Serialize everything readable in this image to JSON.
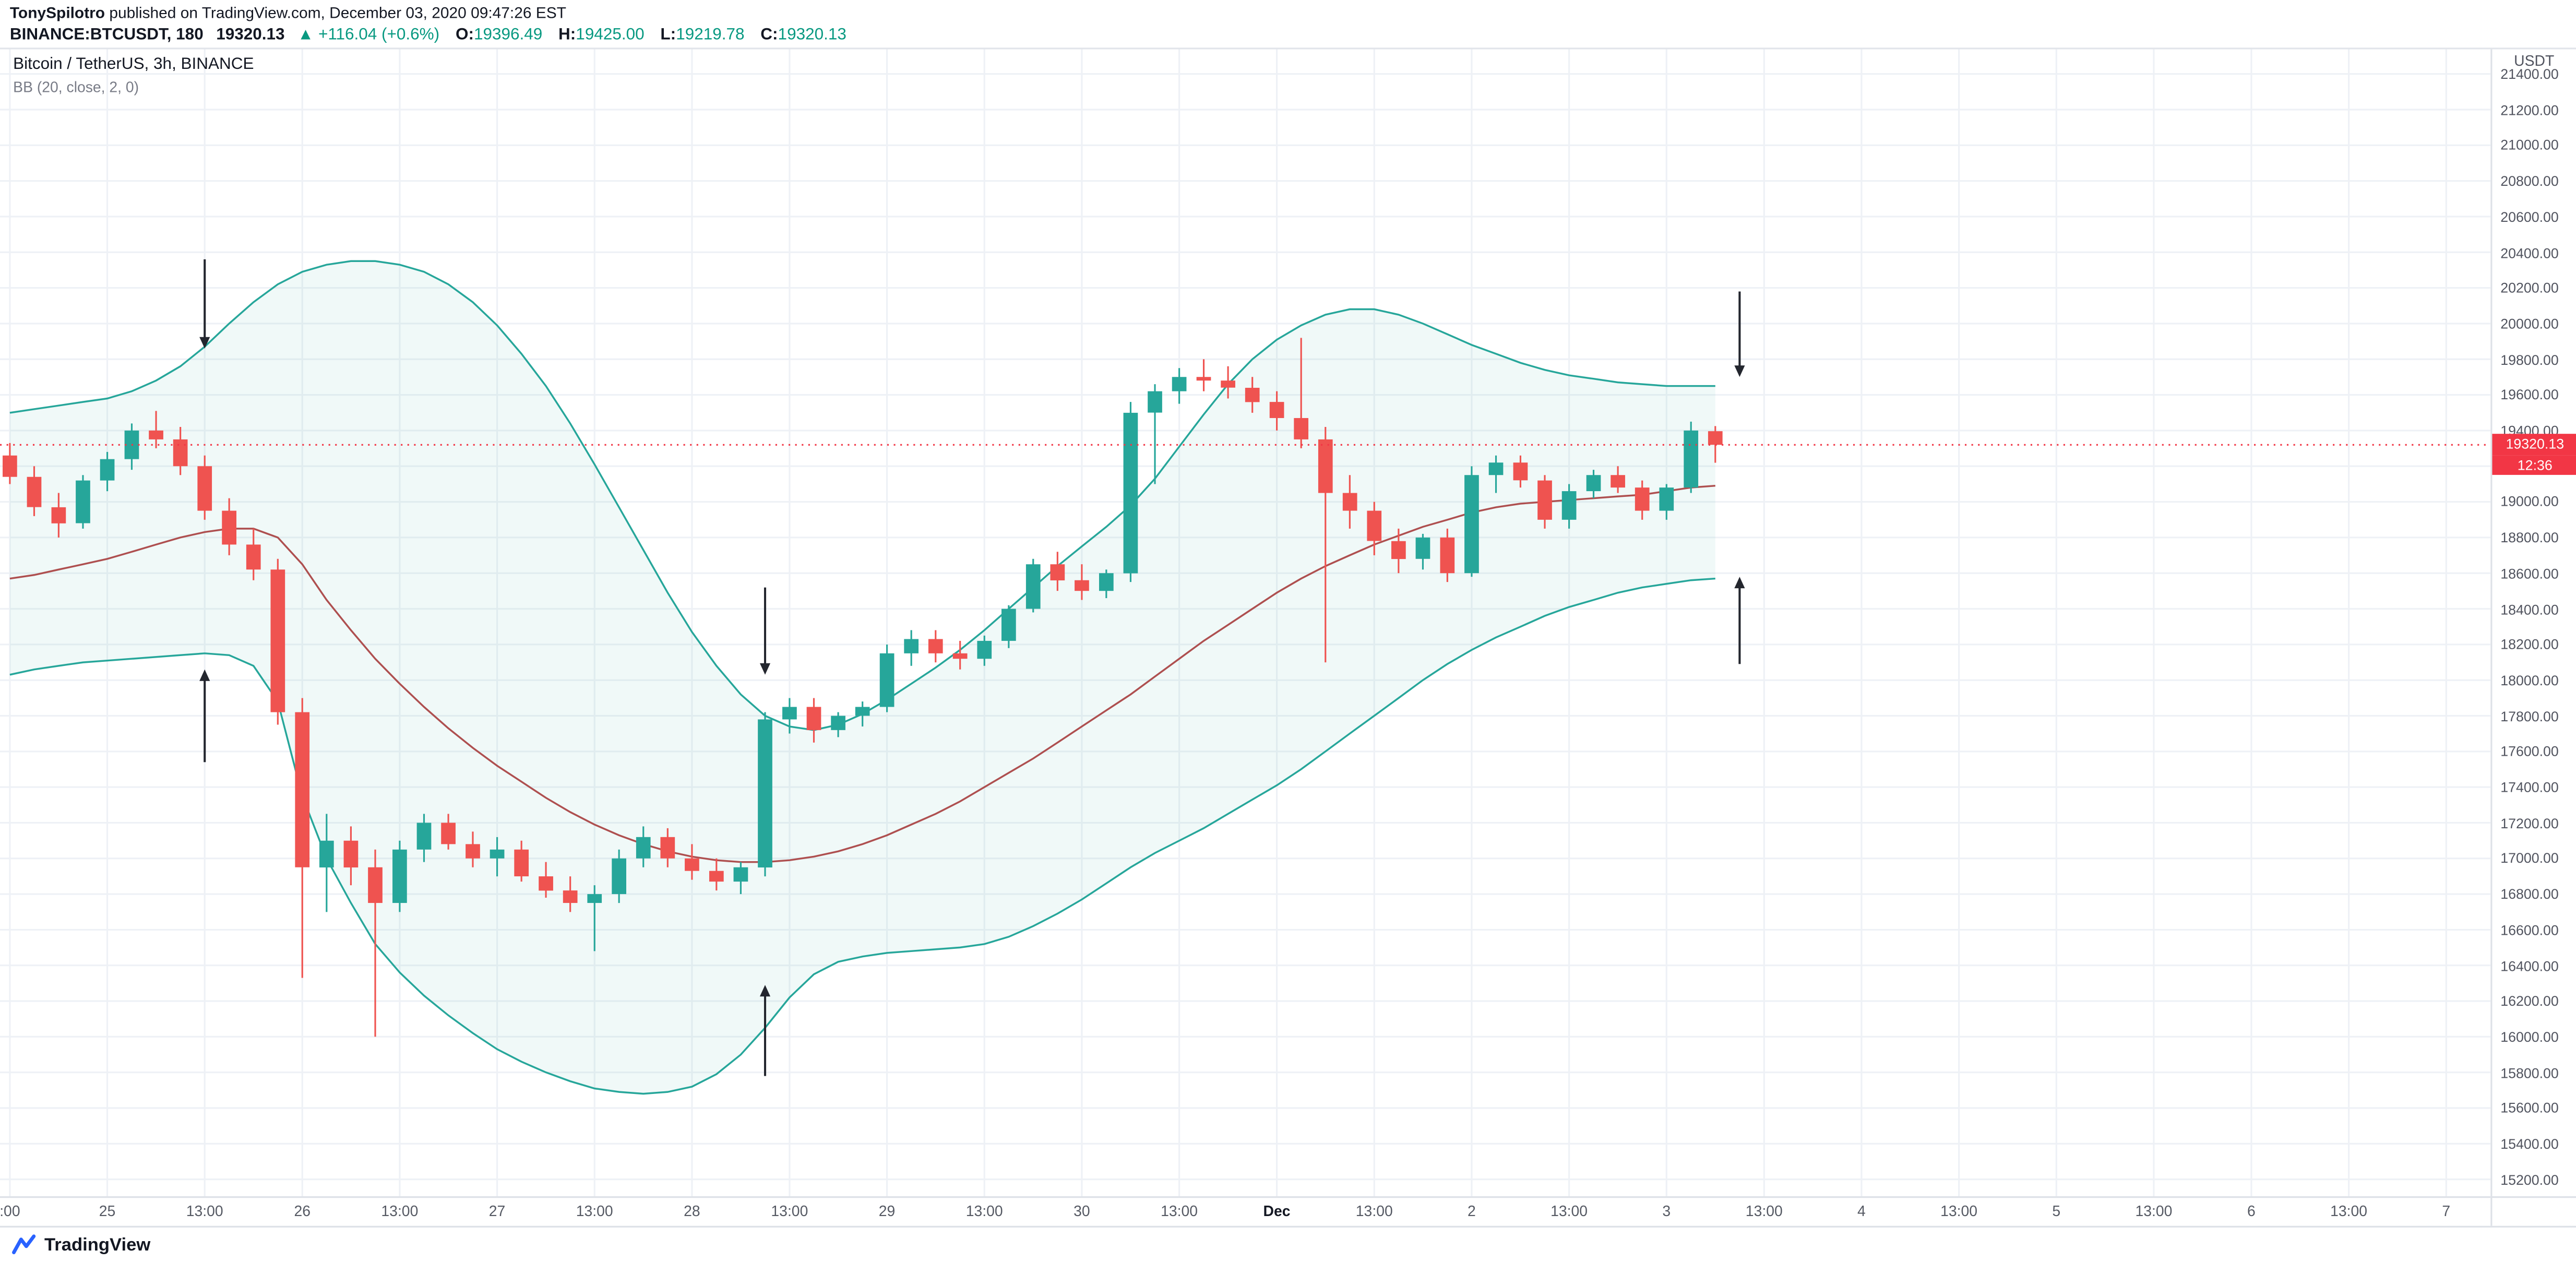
{
  "header": {
    "author": "TonySpilotro",
    "published_text": " published on TradingView.com, December 03, 2020 09:47:26 EST",
    "symbol": "BINANCE:BTCUSDT, 180",
    "last_price": "19320.13",
    "change_arrow": "▲",
    "change": "+116.04 (+0.6%)",
    "ohlc": [
      {
        "label": "O:",
        "value": "19396.49"
      },
      {
        "label": "H:",
        "value": "19425.00"
      },
      {
        "label": "L:",
        "value": "19219.78"
      },
      {
        "label": "C:",
        "value": "19320.13"
      }
    ]
  },
  "legend": {
    "title": "Bitcoin / TetherUS, 3h, BINANCE",
    "indicator": "BB (20, close, 2, 0)"
  },
  "price_badge": {
    "price": "19320.13",
    "countdown": "12:36"
  },
  "footer": {
    "brand": "TradingView"
  },
  "colors": {
    "up": "#26a69a",
    "down": "#ef5350",
    "bb_band": "#26a69a",
    "bb_fill": "rgba(38,166,154,0.07)",
    "bb_mid": "#ae4f4f",
    "price_line": "#f23645",
    "grid": "#eef1f6",
    "arrow": "#23262e",
    "badge": "#f23645"
  },
  "chart_data": {
    "type": "candlestick",
    "title": "Bitcoin / TetherUS, 3h, BINANCE",
    "exchange": "BINANCE",
    "interval": "3h",
    "indicator": "BB (20, close, 2, 0)",
    "ohlc_format": [
      "open",
      "high",
      "low",
      "close"
    ],
    "last_price": 19320.13,
    "y_axis": {
      "unit": "USDT",
      "min": 15200,
      "max": 21400,
      "step": 200,
      "labels": [
        "21400.00",
        "21200.00",
        "21000.00",
        "20800.00",
        "20600.00",
        "20400.00",
        "20200.00",
        "20000.00",
        "19800.00",
        "19600.00",
        "19400.00",
        "19200.00",
        "19000.00",
        "18800.00",
        "18600.00",
        "18400.00",
        "18200.00",
        "18000.00",
        "17800.00",
        "17600.00",
        "17400.00",
        "17200.00",
        "17000.00",
        "16800.00",
        "16600.00",
        "16400.00",
        "16200.00",
        "16000.00",
        "15800.00",
        "15600.00",
        "15400.00",
        "15200.00"
      ]
    },
    "x_axis": {
      "total_slots": 102,
      "labels": [
        {
          "label": ":00",
          "slot": 0
        },
        {
          "label": "25",
          "slot": 4
        },
        {
          "label": "13:00",
          "slot": 8
        },
        {
          "label": "26",
          "slot": 12
        },
        {
          "label": "13:00",
          "slot": 16
        },
        {
          "label": "27",
          "slot": 20
        },
        {
          "label": "13:00",
          "slot": 24
        },
        {
          "label": "28",
          "slot": 28
        },
        {
          "label": "13:00",
          "slot": 32
        },
        {
          "label": "29",
          "slot": 36
        },
        {
          "label": "13:00",
          "slot": 40
        },
        {
          "label": "30",
          "slot": 44
        },
        {
          "label": "13:00",
          "slot": 48
        },
        {
          "label": "Dec",
          "slot": 52,
          "bold": true
        },
        {
          "label": "13:00",
          "slot": 56
        },
        {
          "label": "2",
          "slot": 60
        },
        {
          "label": "13:00",
          "slot": 64
        },
        {
          "label": "3",
          "slot": 68
        },
        {
          "label": "13:00",
          "slot": 72
        },
        {
          "label": "4",
          "slot": 76
        },
        {
          "label": "13:00",
          "slot": 80
        },
        {
          "label": "5",
          "slot": 84
        },
        {
          "label": "13:00",
          "slot": 88
        },
        {
          "label": "6",
          "slot": 92
        },
        {
          "label": "13:00",
          "slot": 96
        },
        {
          "label": "7",
          "slot": 100
        }
      ]
    },
    "candles": [
      [
        19260,
        19330,
        19100,
        19140
      ],
      [
        19140,
        19200,
        18920,
        18970
      ],
      [
        18970,
        19050,
        18800,
        18880
      ],
      [
        18880,
        19150,
        18850,
        19120
      ],
      [
        19120,
        19280,
        19060,
        19240
      ],
      [
        19240,
        19440,
        19180,
        19400
      ],
      [
        19400,
        19510,
        19300,
        19350
      ],
      [
        19350,
        19420,
        19150,
        19200
      ],
      [
        19200,
        19260,
        18900,
        18950
      ],
      [
        18950,
        19020,
        18700,
        18760
      ],
      [
        18760,
        18850,
        18560,
        18620
      ],
      [
        18620,
        18680,
        17750,
        17820
      ],
      [
        17820,
        17900,
        16330,
        16950
      ],
      [
        16950,
        17250,
        16700,
        17100
      ],
      [
        17100,
        17180,
        16850,
        16950
      ],
      [
        16950,
        17050,
        16000,
        16750
      ],
      [
        16750,
        17100,
        16700,
        17050
      ],
      [
        17050,
        17250,
        16980,
        17200
      ],
      [
        17200,
        17250,
        17050,
        17080
      ],
      [
        17080,
        17150,
        16950,
        17000
      ],
      [
        17000,
        17120,
        16900,
        17050
      ],
      [
        17050,
        17100,
        16870,
        16900
      ],
      [
        16900,
        16980,
        16780,
        16820
      ],
      [
        16820,
        16900,
        16700,
        16750
      ],
      [
        16750,
        16850,
        16480,
        16800
      ],
      [
        16800,
        17050,
        16750,
        17000
      ],
      [
        17000,
        17180,
        16950,
        17120
      ],
      [
        17120,
        17170,
        16950,
        17000
      ],
      [
        17000,
        17080,
        16880,
        16930
      ],
      [
        16930,
        17000,
        16820,
        16870
      ],
      [
        16870,
        16980,
        16800,
        16950
      ],
      [
        16950,
        17820,
        16900,
        17780
      ],
      [
        17780,
        17900,
        17700,
        17850
      ],
      [
        17850,
        17900,
        17650,
        17720
      ],
      [
        17720,
        17820,
        17680,
        17800
      ],
      [
        17800,
        17880,
        17740,
        17850
      ],
      [
        17850,
        18200,
        17820,
        18150
      ],
      [
        18150,
        18280,
        18080,
        18230
      ],
      [
        18230,
        18280,
        18100,
        18150
      ],
      [
        18150,
        18220,
        18060,
        18120
      ],
      [
        18120,
        18250,
        18080,
        18220
      ],
      [
        18220,
        18420,
        18180,
        18400
      ],
      [
        18400,
        18680,
        18380,
        18650
      ],
      [
        18650,
        18720,
        18500,
        18560
      ],
      [
        18560,
        18650,
        18450,
        18500
      ],
      [
        18500,
        18620,
        18460,
        18600
      ],
      [
        18600,
        19560,
        18550,
        19500
      ],
      [
        19500,
        19660,
        19100,
        19620
      ],
      [
        19620,
        19750,
        19550,
        19700
      ],
      [
        19700,
        19800,
        19620,
        19680
      ],
      [
        19680,
        19760,
        19580,
        19640
      ],
      [
        19640,
        19700,
        19500,
        19560
      ],
      [
        19560,
        19620,
        19400,
        19470
      ],
      [
        19470,
        19920,
        19300,
        19350
      ],
      [
        19350,
        19420,
        18100,
        19050
      ],
      [
        19050,
        19150,
        18850,
        18950
      ],
      [
        18950,
        19000,
        18700,
        18780
      ],
      [
        18780,
        18850,
        18600,
        18680
      ],
      [
        18680,
        18820,
        18620,
        18800
      ],
      [
        18800,
        18850,
        18550,
        18600
      ],
      [
        18600,
        19200,
        18580,
        19150
      ],
      [
        19150,
        19260,
        19050,
        19220
      ],
      [
        19220,
        19260,
        19080,
        19120
      ],
      [
        19120,
        19150,
        18850,
        18900
      ],
      [
        18900,
        19100,
        18850,
        19060
      ],
      [
        19060,
        19180,
        19020,
        19150
      ],
      [
        19150,
        19200,
        19050,
        19080
      ],
      [
        19080,
        19120,
        18900,
        18950
      ],
      [
        18950,
        19100,
        18900,
        19080
      ],
      [
        19080,
        19450,
        19050,
        19400
      ],
      [
        19396.49,
        19425.0,
        19219.78,
        19320.13
      ]
    ],
    "bb_upper": [
      19500,
      19520,
      19540,
      19560,
      19580,
      19620,
      19680,
      19760,
      19870,
      20000,
      20120,
      20220,
      20290,
      20330,
      20350,
      20350,
      20330,
      20290,
      20220,
      20120,
      19990,
      19830,
      19650,
      19440,
      19210,
      18970,
      18730,
      18490,
      18270,
      18080,
      17920,
      17800,
      17740,
      17720,
      17750,
      17810,
      17890,
      17980,
      18070,
      18170,
      18280,
      18400,
      18520,
      18640,
      18750,
      18860,
      18980,
      19130,
      19310,
      19490,
      19660,
      19800,
      19910,
      19990,
      20050,
      20080,
      20080,
      20050,
      20000,
      19940,
      19880,
      19830,
      19780,
      19740,
      19710,
      19690,
      19670,
      19660,
      19650,
      19650,
      19650
    ],
    "bb_basis": [
      18570,
      18590,
      18620,
      18650,
      18680,
      18720,
      18760,
      18800,
      18830,
      18850,
      18850,
      18800,
      18650,
      18450,
      18280,
      18120,
      17980,
      17850,
      17730,
      17620,
      17520,
      17430,
      17340,
      17260,
      17190,
      17130,
      17080,
      17040,
      17010,
      16990,
      16980,
      16980,
      16990,
      17010,
      17040,
      17080,
      17130,
      17190,
      17250,
      17320,
      17400,
      17480,
      17560,
      17650,
      17740,
      17830,
      17920,
      18020,
      18120,
      18220,
      18310,
      18400,
      18490,
      18570,
      18640,
      18700,
      18760,
      18810,
      18860,
      18900,
      18940,
      18970,
      18990,
      19000,
      19010,
      19020,
      19030,
      19040,
      19060,
      19080,
      19090
    ],
    "bb_lower": [
      18030,
      18060,
      18080,
      18100,
      18110,
      18120,
      18130,
      18140,
      18150,
      18140,
      18080,
      17880,
      17350,
      17000,
      16750,
      16520,
      16360,
      16230,
      16120,
      16020,
      15930,
      15860,
      15800,
      15750,
      15710,
      15690,
      15680,
      15690,
      15720,
      15790,
      15900,
      16050,
      16220,
      16350,
      16420,
      16450,
      16470,
      16480,
      16490,
      16500,
      16520,
      16560,
      16620,
      16690,
      16770,
      16860,
      16950,
      17030,
      17100,
      17170,
      17250,
      17330,
      17410,
      17500,
      17600,
      17700,
      17800,
      17900,
      18000,
      18090,
      18170,
      18240,
      18300,
      18360,
      18410,
      18450,
      18490,
      18520,
      18540,
      18560,
      18570
    ],
    "annotations": [
      {
        "type": "arrow",
        "direction": "down",
        "slot": 8,
        "tip_price": 19860,
        "tail_price": 20360
      },
      {
        "type": "arrow",
        "direction": "up",
        "slot": 8,
        "tip_price": 18060,
        "tail_price": 17540
      },
      {
        "type": "arrow",
        "direction": "down",
        "slot": 31,
        "tip_price": 18030,
        "tail_price": 18520
      },
      {
        "type": "arrow",
        "direction": "up",
        "slot": 31,
        "tip_price": 16290,
        "tail_price": 15780
      },
      {
        "type": "arrow",
        "direction": "down",
        "slot": 71,
        "tip_price": 19700,
        "tail_price": 20180
      },
      {
        "type": "arrow",
        "direction": "up",
        "slot": 71,
        "tip_price": 18580,
        "tail_price": 18090
      }
    ]
  }
}
